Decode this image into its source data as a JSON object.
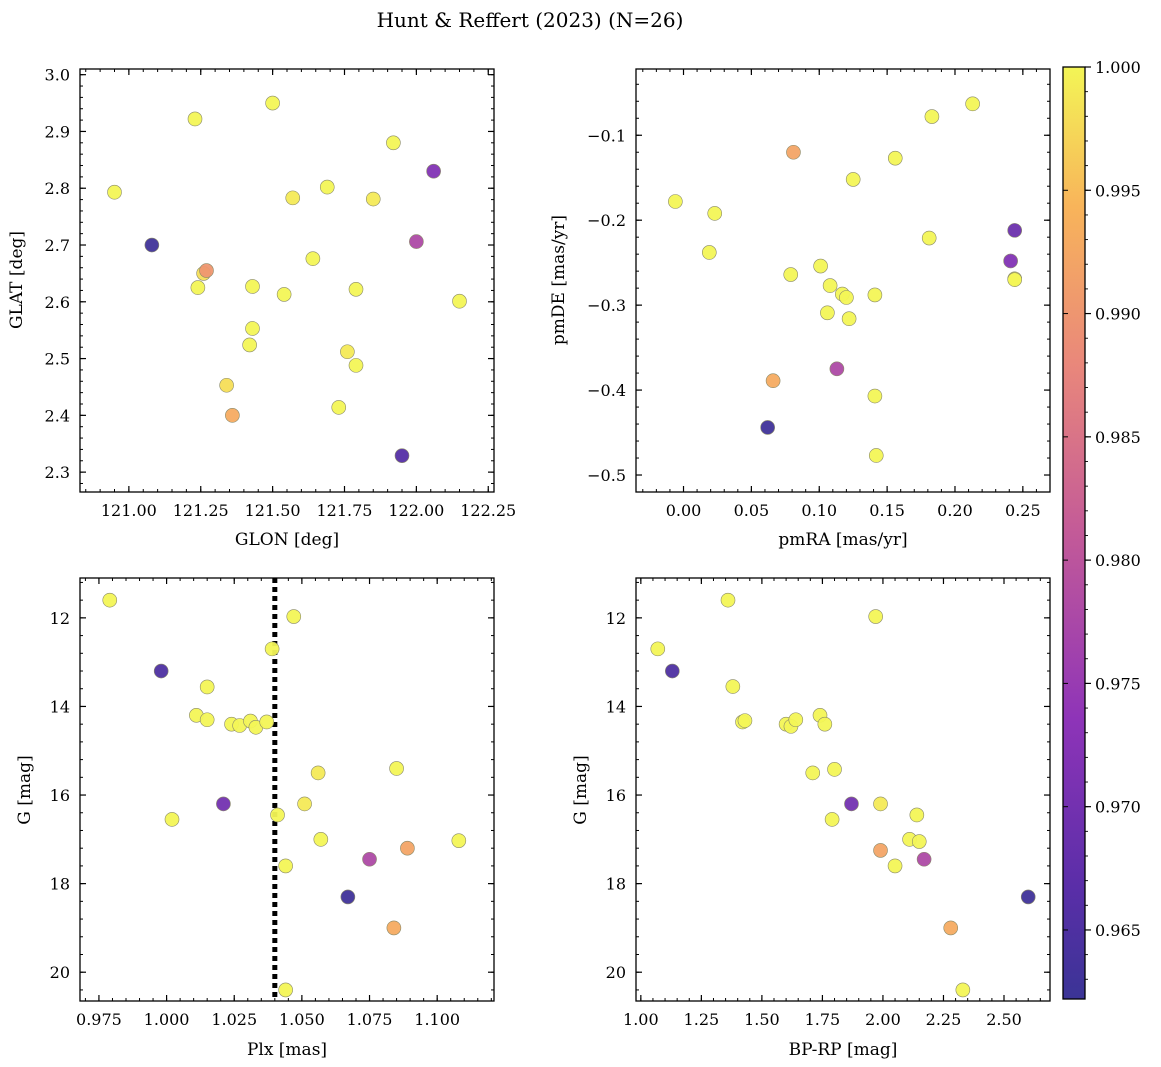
{
  "chart_data": [
    {
      "type": "scatter",
      "title": "Hunt & Reffert (2023) (N=26)",
      "xlabel": "GLON [deg]",
      "ylabel": "GLAT [deg]",
      "xlim": [
        120.83,
        122.27
      ],
      "ylim": [
        2.265,
        3.01
      ],
      "xticks": [
        121.0,
        121.25,
        121.5,
        121.75,
        122.0,
        122.25
      ],
      "xtick_labels": [
        "121.00",
        "121.25",
        "121.50",
        "121.75",
        "122.00",
        "122.25"
      ],
      "yticks": [
        2.3,
        2.4,
        2.5,
        2.6,
        2.7,
        2.8,
        2.9,
        3.0
      ],
      "ytick_labels": [
        "2.3",
        "2.4",
        "2.5",
        "2.6",
        "2.7",
        "2.8",
        "2.9",
        "3.0"
      ],
      "minor_x": 0.05,
      "minor_y": 0.02,
      "points": [
        {
          "x": 120.95,
          "y": 2.793,
          "c": 1.0
        },
        {
          "x": 121.08,
          "y": 2.7,
          "c": 0.963
        },
        {
          "x": 121.23,
          "y": 2.922,
          "c": 1.0
        },
        {
          "x": 121.24,
          "y": 2.625,
          "c": 1.0
        },
        {
          "x": 121.26,
          "y": 2.65,
          "c": 0.998
        },
        {
          "x": 121.27,
          "y": 2.655,
          "c": 0.99
        },
        {
          "x": 121.34,
          "y": 2.453,
          "c": 0.998
        },
        {
          "x": 121.36,
          "y": 2.4,
          "c": 0.993
        },
        {
          "x": 121.42,
          "y": 2.524,
          "c": 1.0
        },
        {
          "x": 121.43,
          "y": 2.553,
          "c": 1.0
        },
        {
          "x": 121.43,
          "y": 2.627,
          "c": 1.0
        },
        {
          "x": 121.5,
          "y": 2.95,
          "c": 1.0
        },
        {
          "x": 121.54,
          "y": 2.613,
          "c": 1.0
        },
        {
          "x": 121.57,
          "y": 2.783,
          "c": 0.999
        },
        {
          "x": 121.64,
          "y": 2.676,
          "c": 1.0
        },
        {
          "x": 121.69,
          "y": 2.802,
          "c": 1.0
        },
        {
          "x": 121.73,
          "y": 2.414,
          "c": 1.0
        },
        {
          "x": 121.76,
          "y": 2.512,
          "c": 0.999
        },
        {
          "x": 121.79,
          "y": 2.622,
          "c": 1.0
        },
        {
          "x": 121.79,
          "y": 2.488,
          "c": 1.0
        },
        {
          "x": 121.85,
          "y": 2.781,
          "c": 0.999
        },
        {
          "x": 121.92,
          "y": 2.88,
          "c": 1.0
        },
        {
          "x": 121.95,
          "y": 2.329,
          "c": 0.966
        },
        {
          "x": 122.0,
          "y": 2.706,
          "c": 0.978
        },
        {
          "x": 122.06,
          "y": 2.83,
          "c": 0.972
        },
        {
          "x": 122.15,
          "y": 2.601,
          "c": 1.0
        }
      ]
    },
    {
      "type": "scatter",
      "xlabel": "pmRA [mas/yr]",
      "ylabel": "pmDE [mas/yr]",
      "xlim": [
        -0.035,
        0.27
      ],
      "ylim": [
        -0.52,
        -0.022
      ],
      "xticks": [
        0.0,
        0.05,
        0.1,
        0.15,
        0.2,
        0.25
      ],
      "xtick_labels": [
        "0.00",
        "0.05",
        "0.10",
        "0.15",
        "0.20",
        "0.25"
      ],
      "yticks": [
        -0.5,
        -0.4,
        -0.3,
        -0.2,
        -0.1
      ],
      "ytick_labels": [
        "−0.5",
        "−0.4",
        "−0.3",
        "−0.2",
        "−0.1"
      ],
      "minor_x": 0.01,
      "minor_y": 0.02,
      "points": [
        {
          "x": -0.006,
          "y": -0.178,
          "c": 1.0
        },
        {
          "x": 0.019,
          "y": -0.238,
          "c": 1.0
        },
        {
          "x": 0.023,
          "y": -0.192,
          "c": 1.0
        },
        {
          "x": 0.062,
          "y": -0.444,
          "c": 0.963
        },
        {
          "x": 0.066,
          "y": -0.389,
          "c": 0.993
        },
        {
          "x": 0.079,
          "y": -0.264,
          "c": 1.0
        },
        {
          "x": 0.081,
          "y": -0.12,
          "c": 0.992
        },
        {
          "x": 0.101,
          "y": -0.254,
          "c": 1.0
        },
        {
          "x": 0.106,
          "y": -0.309,
          "c": 1.0
        },
        {
          "x": 0.108,
          "y": -0.277,
          "c": 1.0
        },
        {
          "x": 0.113,
          "y": -0.375,
          "c": 0.978
        },
        {
          "x": 0.117,
          "y": -0.287,
          "c": 1.0
        },
        {
          "x": 0.12,
          "y": -0.291,
          "c": 1.0
        },
        {
          "x": 0.122,
          "y": -0.316,
          "c": 1.0
        },
        {
          "x": 0.125,
          "y": -0.152,
          "c": 1.0
        },
        {
          "x": 0.141,
          "y": -0.288,
          "c": 1.0
        },
        {
          "x": 0.141,
          "y": -0.407,
          "c": 1.0
        },
        {
          "x": 0.142,
          "y": -0.477,
          "c": 1.0
        },
        {
          "x": 0.156,
          "y": -0.127,
          "c": 1.0
        },
        {
          "x": 0.181,
          "y": -0.221,
          "c": 1.0
        },
        {
          "x": 0.183,
          "y": -0.078,
          "c": 1.0
        },
        {
          "x": 0.213,
          "y": -0.063,
          "c": 1.0
        },
        {
          "x": 0.241,
          "y": -0.248,
          "c": 0.972
        },
        {
          "x": 0.244,
          "y": -0.212,
          "c": 0.969
        },
        {
          "x": 0.244,
          "y": -0.269,
          "c": 1.0
        },
        {
          "x": 0.244,
          "y": -0.27,
          "c": 1.0
        }
      ]
    },
    {
      "type": "scatter",
      "xlabel": "Plx [mas]",
      "ylabel": "G [mag]",
      "xlim": [
        0.968,
        1.121
      ],
      "ylim": [
        20.65,
        11.1
      ],
      "inverted_y": true,
      "xticks": [
        0.975,
        1.0,
        1.025,
        1.05,
        1.075,
        1.1
      ],
      "xtick_labels": [
        "0.975",
        "1.000",
        "1.025",
        "1.050",
        "1.075",
        "1.100"
      ],
      "yticks": [
        12,
        14,
        16,
        18,
        20
      ],
      "ytick_labels": [
        "12",
        "14",
        "16",
        "18",
        "20"
      ],
      "minor_x": 0.005,
      "minor_y": 0.4,
      "vline": {
        "x": 1.04,
        "style": "dotted",
        "color": "#000000"
      },
      "points": [
        {
          "x": 0.979,
          "y": 11.6,
          "c": 1.0
        },
        {
          "x": 0.998,
          "y": 13.2,
          "c": 0.965
        },
        {
          "x": 1.002,
          "y": 16.55,
          "c": 1.0
        },
        {
          "x": 1.011,
          "y": 14.2,
          "c": 1.0
        },
        {
          "x": 1.015,
          "y": 13.56,
          "c": 1.0
        },
        {
          "x": 1.015,
          "y": 14.3,
          "c": 1.0
        },
        {
          "x": 1.021,
          "y": 16.2,
          "c": 0.97
        },
        {
          "x": 1.024,
          "y": 14.4,
          "c": 1.0
        },
        {
          "x": 1.027,
          "y": 14.43,
          "c": 1.0
        },
        {
          "x": 1.031,
          "y": 14.33,
          "c": 1.0
        },
        {
          "x": 1.033,
          "y": 14.47,
          "c": 1.0
        },
        {
          "x": 1.037,
          "y": 14.35,
          "c": 1.0
        },
        {
          "x": 1.039,
          "y": 12.7,
          "c": 1.0
        },
        {
          "x": 1.041,
          "y": 16.45,
          "c": 1.0
        },
        {
          "x": 1.044,
          "y": 17.6,
          "c": 1.0
        },
        {
          "x": 1.044,
          "y": 20.4,
          "c": 1.0
        },
        {
          "x": 1.047,
          "y": 11.97,
          "c": 1.0
        },
        {
          "x": 1.051,
          "y": 16.2,
          "c": 0.999
        },
        {
          "x": 1.056,
          "y": 15.5,
          "c": 0.999
        },
        {
          "x": 1.057,
          "y": 17.0,
          "c": 1.0
        },
        {
          "x": 1.067,
          "y": 18.3,
          "c": 0.963
        },
        {
          "x": 1.075,
          "y": 17.45,
          "c": 0.978
        },
        {
          "x": 1.084,
          "y": 19.0,
          "c": 0.993
        },
        {
          "x": 1.085,
          "y": 15.4,
          "c": 1.0
        },
        {
          "x": 1.089,
          "y": 17.2,
          "c": 0.992
        },
        {
          "x": 1.108,
          "y": 17.03,
          "c": 1.0
        }
      ]
    },
    {
      "type": "scatter",
      "xlabel": "BP-RP [mag]",
      "ylabel": "G [mag]",
      "xlim": [
        0.98,
        2.69
      ],
      "ylim": [
        20.65,
        11.1
      ],
      "inverted_y": true,
      "xticks": [
        1.0,
        1.25,
        1.5,
        1.75,
        2.0,
        2.25,
        2.5
      ],
      "xtick_labels": [
        "1.00",
        "1.25",
        "1.50",
        "1.75",
        "2.00",
        "2.25",
        "2.50"
      ],
      "yticks": [
        12,
        14,
        16,
        18,
        20
      ],
      "ytick_labels": [
        "12",
        "14",
        "16",
        "18",
        "20"
      ],
      "minor_x": 0.05,
      "minor_y": 0.4,
      "points": [
        {
          "x": 1.07,
          "y": 12.7,
          "c": 1.0
        },
        {
          "x": 1.13,
          "y": 13.2,
          "c": 0.965
        },
        {
          "x": 1.36,
          "y": 11.6,
          "c": 1.0
        },
        {
          "x": 1.38,
          "y": 13.55,
          "c": 1.0
        },
        {
          "x": 1.42,
          "y": 14.35,
          "c": 1.0
        },
        {
          "x": 1.43,
          "y": 14.32,
          "c": 1.0
        },
        {
          "x": 1.6,
          "y": 14.4,
          "c": 1.0
        },
        {
          "x": 1.62,
          "y": 14.45,
          "c": 1.0
        },
        {
          "x": 1.64,
          "y": 14.3,
          "c": 1.0
        },
        {
          "x": 1.71,
          "y": 15.5,
          "c": 1.0
        },
        {
          "x": 1.74,
          "y": 14.2,
          "c": 1.0
        },
        {
          "x": 1.76,
          "y": 14.4,
          "c": 1.0
        },
        {
          "x": 1.79,
          "y": 16.55,
          "c": 1.0
        },
        {
          "x": 1.8,
          "y": 15.42,
          "c": 1.0
        },
        {
          "x": 1.87,
          "y": 16.2,
          "c": 0.97
        },
        {
          "x": 1.97,
          "y": 11.97,
          "c": 1.0
        },
        {
          "x": 1.99,
          "y": 16.2,
          "c": 0.999
        },
        {
          "x": 1.99,
          "y": 17.25,
          "c": 0.992
        },
        {
          "x": 2.05,
          "y": 17.6,
          "c": 1.0
        },
        {
          "x": 2.11,
          "y": 17.0,
          "c": 1.0
        },
        {
          "x": 2.14,
          "y": 16.45,
          "c": 1.0
        },
        {
          "x": 2.15,
          "y": 17.05,
          "c": 1.0
        },
        {
          "x": 2.17,
          "y": 17.45,
          "c": 0.978
        },
        {
          "x": 2.28,
          "y": 19.0,
          "c": 0.993
        },
        {
          "x": 2.33,
          "y": 20.4,
          "c": 1.0
        },
        {
          "x": 2.6,
          "y": 18.3,
          "c": 0.963
        }
      ]
    }
  ],
  "colorbar": {
    "cmap": "plasma",
    "range": [
      0.9622,
      1.0
    ],
    "ticks": [
      0.965,
      0.97,
      0.975,
      0.98,
      0.985,
      0.99,
      0.995,
      1.0
    ],
    "tick_labels": [
      "0.965",
      "0.970",
      "0.975",
      "0.980",
      "0.985",
      "0.990",
      "0.995",
      "1.000"
    ],
    "stops": [
      {
        "v": 0.0,
        "color": "#3b3496"
      },
      {
        "v": 0.12,
        "color": "#5a2ea8"
      },
      {
        "v": 0.3,
        "color": "#8e34b8"
      },
      {
        "v": 0.5,
        "color": "#c35a98"
      },
      {
        "v": 0.68,
        "color": "#e9877b"
      },
      {
        "v": 0.85,
        "color": "#f8b45a"
      },
      {
        "v": 1.0,
        "color": "#f3f556"
      }
    ]
  }
}
